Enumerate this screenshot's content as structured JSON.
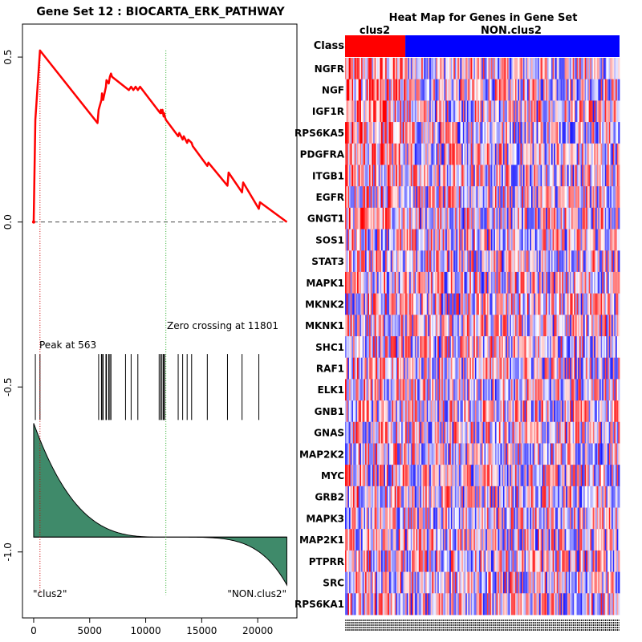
{
  "chart_data": [
    {
      "type": "line",
      "title": "Gene Set  12 : BIOCARTA_ERK_PATHWAY",
      "xlim": [
        -1000,
        23500
      ],
      "ylim": [
        -1.2,
        0.6
      ],
      "x_ticks": [
        0,
        5000,
        10000,
        15000,
        20000
      ],
      "x_tick_labels": [
        "0",
        "5000",
        "10000",
        "15000",
        "20000"
      ],
      "y_ticks": [
        0.5,
        0.0,
        -0.5,
        -1.0
      ],
      "y_tick_labels": [
        "0.5",
        "0.0",
        "-0.5",
        "-1.0"
      ],
      "enrichment_score": {
        "x": [
          0,
          150,
          563,
          5700,
          5800,
          6050,
          6100,
          6200,
          6450,
          6500,
          6700,
          6800,
          6900,
          7000,
          8500,
          8700,
          8900,
          9100,
          9300,
          9500,
          11300,
          11350,
          11400,
          11500,
          11550,
          11600,
          11650,
          11700,
          11800,
          12900,
          13000,
          13300,
          13400,
          13700,
          13800,
          14100,
          14200,
          15500,
          15600,
          17300,
          17400,
          18600,
          18700,
          20100,
          20200,
          22600
        ],
        "y": [
          0.0,
          0.31,
          0.52,
          0.3,
          0.34,
          0.37,
          0.39,
          0.37,
          0.41,
          0.43,
          0.42,
          0.44,
          0.45,
          0.44,
          0.4,
          0.41,
          0.4,
          0.41,
          0.4,
          0.41,
          0.33,
          0.34,
          0.33,
          0.34,
          0.33,
          0.32,
          0.33,
          0.32,
          0.31,
          0.26,
          0.27,
          0.25,
          0.26,
          0.24,
          0.25,
          0.24,
          0.23,
          0.17,
          0.18,
          0.11,
          0.15,
          0.09,
          0.12,
          0.04,
          0.06,
          0.0
        ]
      },
      "baseline_y": 0.0,
      "peak": {
        "x": 563,
        "label": "Peak at 563"
      },
      "zero_crossing": {
        "x": 11801,
        "label": "Zero crossing at 11801"
      },
      "hits": [
        150,
        563,
        5800,
        6050,
        6100,
        6200,
        6450,
        6500,
        6700,
        6800,
        6900,
        8200,
        8700,
        9300,
        11200,
        11350,
        11400,
        11550,
        11600,
        11700,
        12900,
        13300,
        13700,
        14100,
        15500,
        17300,
        18600,
        20100
      ],
      "hit_band": [
        -0.4,
        -0.6
      ],
      "ranked_metric_region": [
        -0.6,
        -1.1
      ],
      "left_label": "\"clus2\"",
      "right_label": "\"NON.clus2\"",
      "colors": {
        "es_line": "#ff0000",
        "peak_line": "#cc0000",
        "zero_line": "#22aa22",
        "fill": "#3f8a6a",
        "baseline": "#444444"
      }
    },
    {
      "type": "heatmap",
      "title": "Heat Map for Genes in Gene Set",
      "class_label": "Class",
      "class_groups": [
        {
          "name": "clus2",
          "columns": 45,
          "color": "#ff0000"
        },
        {
          "name": "NON.clus2",
          "columns": 160,
          "color": "#0000ff"
        }
      ],
      "genes": [
        "NGFR",
        "NGF",
        "IGF1R",
        "RPS6KA5",
        "PDGFRA",
        "ITGB1",
        "EGFR",
        "GNGT1",
        "SOS1",
        "STAT3",
        "MAPK1",
        "MKNK2",
        "MKNK1",
        "SHC1",
        "RAF1",
        "ELK1",
        "GNB1",
        "GNAS",
        "MAP2K2",
        "MYC",
        "GRB2",
        "MAPK3",
        "MAP2K1",
        "PTPRR",
        "SRC",
        "RPS6KA1"
      ],
      "color_scale": {
        "low": "#0000ff",
        "mid": "#ffffff",
        "high": "#ff0000"
      }
    }
  ]
}
